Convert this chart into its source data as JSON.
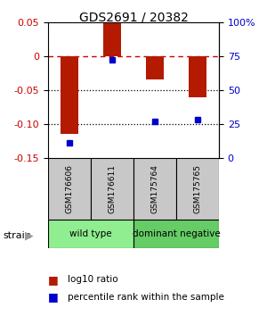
{
  "title": "GDS2691 / 20382",
  "samples": [
    "GSM176606",
    "GSM176611",
    "GSM175764",
    "GSM175765"
  ],
  "log10_ratio": [
    -0.115,
    0.048,
    -0.035,
    -0.06
  ],
  "percentile_rank": [
    11,
    72,
    27,
    28
  ],
  "left_ylim": [
    -0.15,
    0.05
  ],
  "right_ylim": [
    0,
    100
  ],
  "left_yticks": [
    -0.15,
    -0.1,
    -0.05,
    0,
    0.05
  ],
  "right_yticks": [
    0,
    25,
    50,
    75,
    100
  ],
  "right_yticklabels": [
    "0",
    "25",
    "50",
    "75",
    "100%"
  ],
  "hline_dashed": 0,
  "hlines_dotted": [
    -0.05,
    -0.1
  ],
  "bar_color": "#b31a00",
  "scatter_color": "#0000cc",
  "group_info": [
    {
      "start": 0,
      "end": 1,
      "label": "wild type",
      "color": "#90ee90"
    },
    {
      "start": 2,
      "end": 3,
      "label": "dominant negative",
      "color": "#66cc66"
    }
  ],
  "strain_label": "strain",
  "legend_bar_label": "log10 ratio",
  "legend_scatter_label": "percentile rank within the sample",
  "left_tick_color": "#cc0000",
  "right_tick_color": "#0000cc",
  "bg_color": "#ffffff",
  "gray_box_color": "#c8c8c8",
  "bar_width": 0.4,
  "title_fontsize": 10,
  "tick_fontsize": 8,
  "sample_fontsize": 6.5,
  "group_fontsize": 7.5,
  "legend_fontsize": 7.5,
  "strain_fontsize": 8
}
